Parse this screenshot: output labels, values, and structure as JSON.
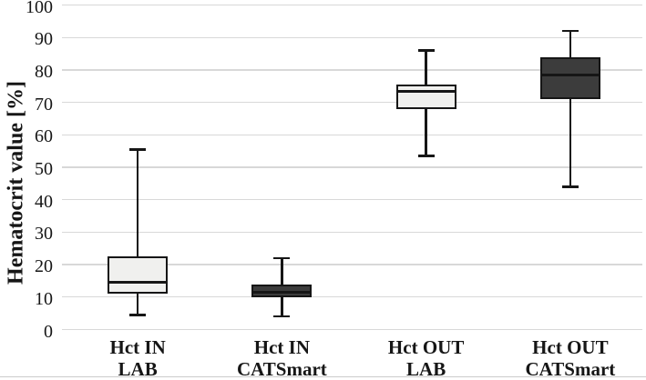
{
  "figure": {
    "background": "#ffffff",
    "bottom_rule_color": "#cccccc"
  },
  "chart_data": {
    "type": "boxplot",
    "title": "",
    "xlabel": "",
    "ylabel": "Hematocrit value [%]",
    "ylim": [
      0,
      100
    ],
    "yticks": [
      0,
      10,
      20,
      30,
      40,
      50,
      60,
      70,
      80,
      90,
      100
    ],
    "grid": "horizontal",
    "legend_position": "none",
    "categories": [
      {
        "line1": "Hct IN",
        "line2": "LAB"
      },
      {
        "line1": "Hct IN",
        "line2": "CATSmart"
      },
      {
        "line1": "Hct OUT",
        "line2": "LAB"
      },
      {
        "line1": "Hct OUT",
        "line2": "CATSmart"
      }
    ],
    "series": [
      {
        "name": "Hct IN LAB",
        "box_style": "light",
        "min": 4.5,
        "q1": 11,
        "median": 14.5,
        "q3": 22.5,
        "max": 55.5
      },
      {
        "name": "Hct IN CATSmart",
        "box_style": "dark",
        "min": 4,
        "q1": 10,
        "median": 11.5,
        "q3": 14,
        "max": 22
      },
      {
        "name": "Hct OUT LAB",
        "box_style": "light",
        "min": 53.5,
        "q1": 68,
        "median": 73.5,
        "q3": 75.5,
        "max": 86
      },
      {
        "name": "Hct OUT CATSmart",
        "box_style": "dark",
        "min": 44,
        "q1": 71,
        "median": 78.5,
        "q3": 84,
        "max": 92
      }
    ],
    "colors": {
      "box_fill_light": "#f0f0ee",
      "box_fill_dark": "#3c3c3c",
      "line": "#161616",
      "gridline": "#d8d8d8",
      "text": "#161616"
    }
  }
}
